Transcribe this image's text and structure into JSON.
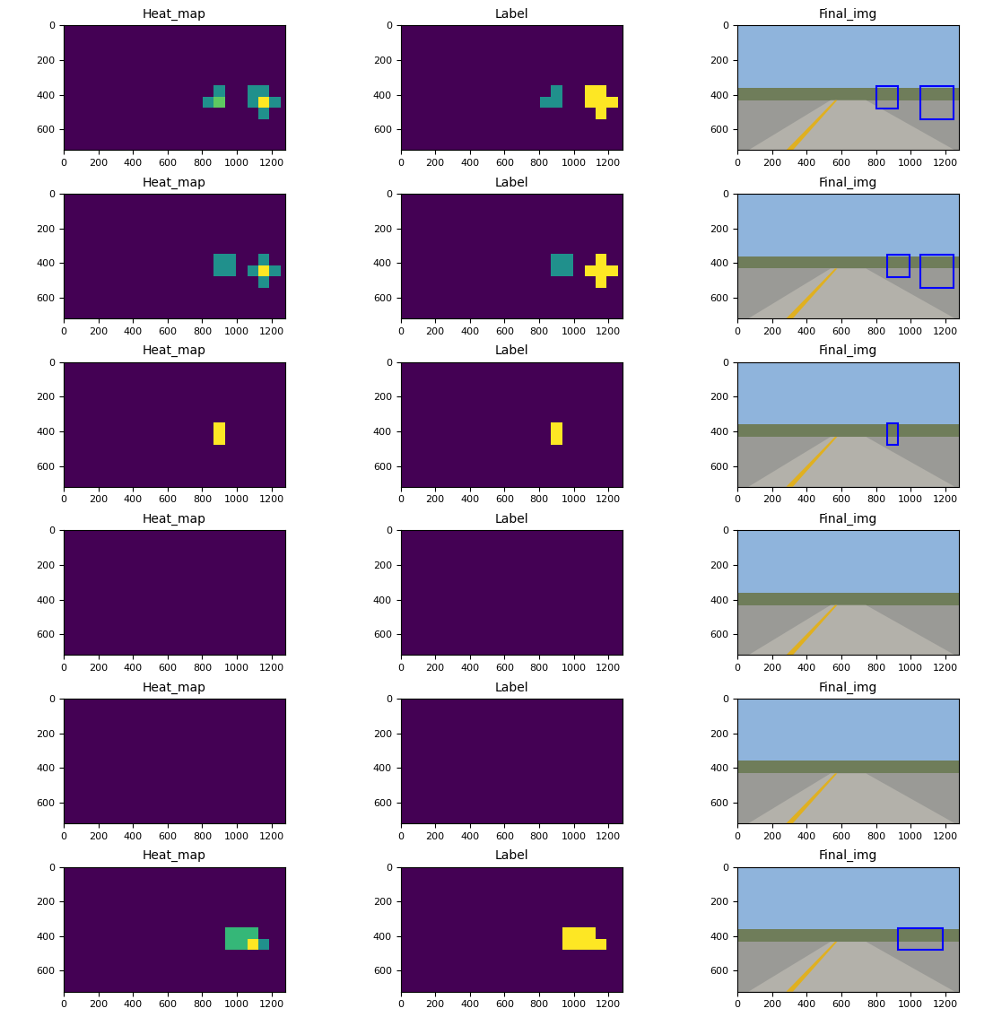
{
  "chart_data": [
    {
      "type": "heatmap",
      "title": "Heat_map",
      "xlim": [
        0,
        1280
      ],
      "ylim": [
        720,
        0
      ],
      "xticks": [
        0,
        200,
        400,
        600,
        800,
        1000,
        1200
      ],
      "yticks": [
        0,
        200,
        400,
        600
      ],
      "cells": [
        {
          "x0": 800,
          "y0": 416,
          "x1": 864,
          "y1": 480,
          "value": 2
        },
        {
          "x0": 864,
          "y0": 352,
          "x1": 928,
          "y1": 416,
          "value": 2
        },
        {
          "x0": 864,
          "y0": 416,
          "x1": 928,
          "y1": 480,
          "value": 3
        },
        {
          "x0": 1056,
          "y0": 352,
          "x1": 1120,
          "y1": 416,
          "value": 2
        },
        {
          "x0": 1120,
          "y0": 352,
          "x1": 1184,
          "y1": 416,
          "value": 2
        },
        {
          "x0": 1056,
          "y0": 416,
          "x1": 1120,
          "y1": 480,
          "value": 2
        },
        {
          "x0": 1120,
          "y0": 416,
          "x1": 1184,
          "y1": 480,
          "value": 4
        },
        {
          "x0": 1184,
          "y0": 416,
          "x1": 1248,
          "y1": 480,
          "value": 2
        },
        {
          "x0": 1120,
          "y0": 480,
          "x1": 1184,
          "y1": 544,
          "value": 2
        }
      ]
    },
    {
      "type": "heatmap",
      "title": "Label",
      "xlim": [
        0,
        1280
      ],
      "ylim": [
        720,
        0
      ],
      "xticks": [
        0,
        200,
        400,
        600,
        800,
        1000,
        1200
      ],
      "yticks": [
        0,
        200,
        400,
        600
      ],
      "cells": [
        {
          "x0": 800,
          "y0": 416,
          "x1": 864,
          "y1": 480,
          "value": 1
        },
        {
          "x0": 864,
          "y0": 352,
          "x1": 928,
          "y1": 480,
          "value": 1
        },
        {
          "x0": 1056,
          "y0": 352,
          "x1": 1184,
          "y1": 416,
          "value": 2
        },
        {
          "x0": 1056,
          "y0": 416,
          "x1": 1248,
          "y1": 480,
          "value": 2
        },
        {
          "x0": 1120,
          "y0": 480,
          "x1": 1184,
          "y1": 544,
          "value": 2
        }
      ]
    },
    {
      "type": "image",
      "title": "Final_img",
      "xlim": [
        0,
        1280
      ],
      "ylim": [
        720,
        0
      ],
      "xticks": [
        0,
        200,
        400,
        600,
        800,
        1000,
        1200
      ],
      "yticks": [
        0,
        200,
        400,
        600
      ],
      "color": "#0000ff",
      "boxes": [
        [
          800,
          352,
          928,
          480
        ],
        [
          1056,
          352,
          1248,
          544
        ]
      ]
    },
    {
      "type": "heatmap",
      "title": "Heat_map",
      "xlim": [
        0,
        1280
      ],
      "ylim": [
        720,
        0
      ],
      "xticks": [
        0,
        200,
        400,
        600,
        800,
        1000,
        1200
      ],
      "yticks": [
        0,
        200,
        400,
        600
      ],
      "cells": [
        {
          "x0": 864,
          "y0": 352,
          "x1": 992,
          "y1": 480,
          "value": 1
        },
        {
          "x0": 1120,
          "y0": 352,
          "x1": 1184,
          "y1": 416,
          "value": 1
        },
        {
          "x0": 1056,
          "y0": 416,
          "x1": 1120,
          "y1": 480,
          "value": 1
        },
        {
          "x0": 1120,
          "y0": 416,
          "x1": 1184,
          "y1": 480,
          "value": 2
        },
        {
          "x0": 1184,
          "y0": 416,
          "x1": 1248,
          "y1": 480,
          "value": 1
        },
        {
          "x0": 1120,
          "y0": 480,
          "x1": 1184,
          "y1": 544,
          "value": 1
        }
      ]
    },
    {
      "type": "heatmap",
      "title": "Label",
      "xlim": [
        0,
        1280
      ],
      "ylim": [
        720,
        0
      ],
      "xticks": [
        0,
        200,
        400,
        600,
        800,
        1000,
        1200
      ],
      "yticks": [
        0,
        200,
        400,
        600
      ],
      "cells": [
        {
          "x0": 864,
          "y0": 352,
          "x1": 992,
          "y1": 480,
          "value": 1
        },
        {
          "x0": 1120,
          "y0": 352,
          "x1": 1184,
          "y1": 544,
          "value": 2
        },
        {
          "x0": 1056,
          "y0": 416,
          "x1": 1248,
          "y1": 480,
          "value": 2
        }
      ]
    },
    {
      "type": "image",
      "title": "Final_img",
      "xlim": [
        0,
        1280
      ],
      "ylim": [
        720,
        0
      ],
      "xticks": [
        0,
        200,
        400,
        600,
        800,
        1000,
        1200
      ],
      "yticks": [
        0,
        200,
        400,
        600
      ],
      "color": "#0000ff",
      "boxes": [
        [
          864,
          352,
          992,
          480
        ],
        [
          1056,
          352,
          1248,
          544
        ]
      ]
    },
    {
      "type": "heatmap",
      "title": "Heat_map",
      "xlim": [
        0,
        1280
      ],
      "ylim": [
        720,
        0
      ],
      "xticks": [
        0,
        200,
        400,
        600,
        800,
        1000,
        1200
      ],
      "yticks": [
        0,
        200,
        400,
        600
      ],
      "cells": [
        {
          "x0": 864,
          "y0": 352,
          "x1": 928,
          "y1": 480,
          "value": 1
        }
      ]
    },
    {
      "type": "heatmap",
      "title": "Label",
      "xlim": [
        0,
        1280
      ],
      "ylim": [
        720,
        0
      ],
      "xticks": [
        0,
        200,
        400,
        600,
        800,
        1000,
        1200
      ],
      "yticks": [
        0,
        200,
        400,
        600
      ],
      "cells": [
        {
          "x0": 864,
          "y0": 352,
          "x1": 928,
          "y1": 480,
          "value": 1
        }
      ]
    },
    {
      "type": "image",
      "title": "Final_img",
      "xlim": [
        0,
        1280
      ],
      "ylim": [
        720,
        0
      ],
      "xticks": [
        0,
        200,
        400,
        600,
        800,
        1000,
        1200
      ],
      "yticks": [
        0,
        200,
        400,
        600
      ],
      "color": "#0000ff",
      "boxes": [
        [
          864,
          352,
          928,
          480
        ]
      ]
    },
    {
      "type": "heatmap",
      "title": "Heat_map",
      "xlim": [
        0,
        1280
      ],
      "ylim": [
        720,
        0
      ],
      "xticks": [
        0,
        200,
        400,
        600,
        800,
        1000,
        1200
      ],
      "yticks": [
        0,
        200,
        400,
        600
      ],
      "cells": []
    },
    {
      "type": "heatmap",
      "title": "Label",
      "xlim": [
        0,
        1280
      ],
      "ylim": [
        720,
        0
      ],
      "xticks": [
        0,
        200,
        400,
        600,
        800,
        1000,
        1200
      ],
      "yticks": [
        0,
        200,
        400,
        600
      ],
      "cells": []
    },
    {
      "type": "image",
      "title": "Final_img",
      "xlim": [
        0,
        1280
      ],
      "ylim": [
        720,
        0
      ],
      "xticks": [
        0,
        200,
        400,
        600,
        800,
        1000,
        1200
      ],
      "yticks": [
        0,
        200,
        400,
        600
      ],
      "color": "#0000ff",
      "boxes": []
    },
    {
      "type": "heatmap",
      "title": "Heat_map",
      "xlim": [
        0,
        1280
      ],
      "ylim": [
        720,
        0
      ],
      "xticks": [
        0,
        200,
        400,
        600,
        800,
        1000,
        1200
      ],
      "yticks": [
        0,
        200,
        400,
        600
      ],
      "cells": []
    },
    {
      "type": "heatmap",
      "title": "Label",
      "xlim": [
        0,
        1280
      ],
      "ylim": [
        720,
        0
      ],
      "xticks": [
        0,
        200,
        400,
        600,
        800,
        1000,
        1200
      ],
      "yticks": [
        0,
        200,
        400,
        600
      ],
      "cells": []
    },
    {
      "type": "image",
      "title": "Final_img",
      "xlim": [
        0,
        1280
      ],
      "ylim": [
        720,
        0
      ],
      "xticks": [
        0,
        200,
        400,
        600,
        800,
        1000,
        1200
      ],
      "yticks": [
        0,
        200,
        400,
        600
      ],
      "color": "#0000ff",
      "boxes": []
    },
    {
      "type": "heatmap",
      "title": "Heat_map",
      "xlim": [
        0,
        1280
      ],
      "ylim": [
        720,
        0
      ],
      "xticks": [
        0,
        200,
        400,
        600,
        800,
        1000,
        1200
      ],
      "yticks": [
        0,
        200,
        400,
        600
      ],
      "cells": [
        {
          "x0": 928,
          "y0": 352,
          "x1": 1120,
          "y1": 416,
          "value": 2
        },
        {
          "x0": 928,
          "y0": 416,
          "x1": 1056,
          "y1": 480,
          "value": 2
        },
        {
          "x0": 1056,
          "y0": 416,
          "x1": 1120,
          "y1": 480,
          "value": 3
        },
        {
          "x0": 1120,
          "y0": 416,
          "x1": 1184,
          "y1": 480,
          "value": 1.5
        }
      ]
    },
    {
      "type": "heatmap",
      "title": "Label",
      "xlim": [
        0,
        1280
      ],
      "ylim": [
        720,
        0
      ],
      "xticks": [
        0,
        200,
        400,
        600,
        800,
        1000,
        1200
      ],
      "yticks": [
        0,
        200,
        400,
        600
      ],
      "cells": [
        {
          "x0": 928,
          "y0": 352,
          "x1": 1120,
          "y1": 480,
          "value": 1
        },
        {
          "x0": 1120,
          "y0": 416,
          "x1": 1184,
          "y1": 480,
          "value": 1
        }
      ]
    },
    {
      "type": "image",
      "title": "Final_img",
      "xlim": [
        0,
        1280
      ],
      "ylim": [
        720,
        0
      ],
      "xticks": [
        0,
        200,
        400,
        600,
        800,
        1000,
        1200
      ],
      "yticks": [
        0,
        200,
        400,
        600
      ],
      "color": "#0000ff",
      "boxes": [
        [
          928,
          352,
          1184,
          480
        ]
      ]
    }
  ]
}
